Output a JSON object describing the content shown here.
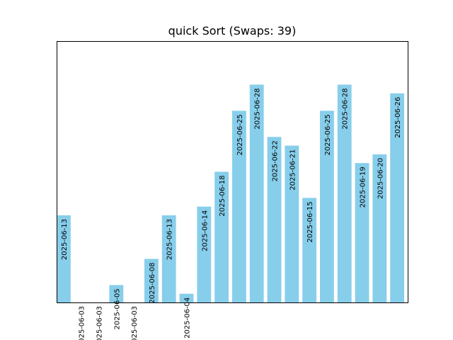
{
  "chart_data": {
    "type": "bar",
    "title": "quick Sort (Swaps: 39)",
    "xlabel": "",
    "ylabel": "",
    "bar_color": "#87ceeb",
    "ylim": [
      0,
      30
    ],
    "values": [
      10,
      0,
      0,
      2,
      0,
      5,
      10,
      1,
      11,
      15,
      22,
      25,
      19,
      18,
      12,
      22,
      25,
      16,
      17,
      24
    ],
    "labels": [
      "2025-06-13",
      "2025-06-03",
      "2025-06-03",
      "2025-06-05",
      "2025-06-03",
      "2025-06-08",
      "2025-06-13",
      "2025-06-04",
      "2025-06-14",
      "2025-06-18",
      "2025-06-25",
      "2025-06-28",
      "2025-06-22",
      "2025-06-21",
      "2025-06-15",
      "2025-06-25",
      "2025-06-28",
      "2025-06-19",
      "2025-06-20",
      "2025-06-26"
    ]
  }
}
